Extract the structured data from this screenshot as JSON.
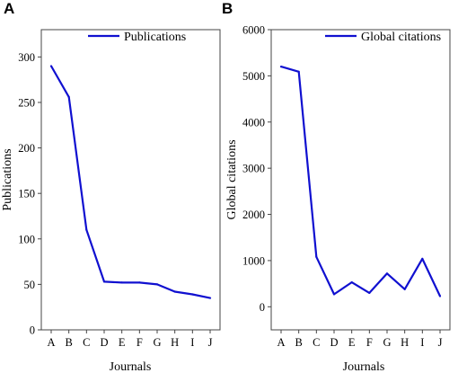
{
  "chart_data": [
    {
      "type": "line",
      "panel": "A",
      "categories": [
        "A",
        "B",
        "C",
        "D",
        "E",
        "F",
        "G",
        "H",
        "I",
        "J"
      ],
      "series": [
        {
          "name": "Publications",
          "values": [
            290,
            256,
            110,
            53,
            52,
            52,
            50,
            42,
            39,
            35
          ]
        }
      ],
      "xlabel": "Journals",
      "ylabel": "Publications",
      "ylim": [
        0,
        330
      ],
      "yticks": [
        0,
        50,
        100,
        150,
        200,
        250,
        300
      ],
      "ytick_labels": [
        "0",
        "50",
        "100",
        "150",
        "200",
        "250",
        "300"
      ],
      "grid": false,
      "legend": "top-right",
      "color": "#1010d0"
    },
    {
      "type": "line",
      "panel": "B",
      "categories": [
        "A",
        "B",
        "C",
        "D",
        "E",
        "F",
        "G",
        "H",
        "I",
        "J"
      ],
      "series": [
        {
          "name": "Global citations",
          "values": [
            5200,
            5090,
            1080,
            270,
            530,
            300,
            720,
            380,
            1040,
            230
          ]
        }
      ],
      "xlabel": "Journals",
      "ylabel": "Global citations",
      "ylim": [
        -500,
        6000
      ],
      "yticks": [
        0,
        1000,
        2000,
        3000,
        4000,
        5000,
        6000
      ],
      "ytick_labels": [
        "0",
        "1000",
        "2000",
        "3000",
        "4000",
        "5000",
        "6000"
      ],
      "grid": false,
      "legend": "top-right",
      "color": "#1010d0"
    }
  ]
}
